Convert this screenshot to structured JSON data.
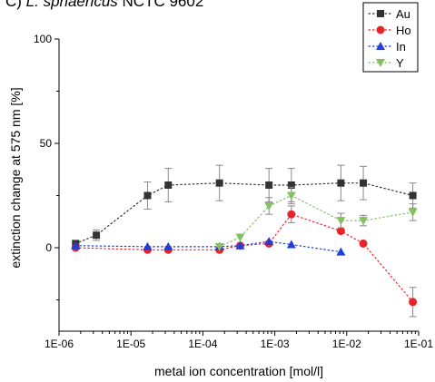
{
  "title": {
    "prefix": "C) ",
    "species": "L. sphaericus",
    "suffix": " NCTC 9602"
  },
  "chart_data": {
    "type": "scatter",
    "xlabel": "metal ion concentration [mol/l]",
    "ylabel": "extinction change at 575 nm [%]",
    "x_scale": "log",
    "xlim": [
      1e-06,
      0.1
    ],
    "ylim": [
      -40,
      100
    ],
    "x_ticks": [
      1e-06,
      1e-05,
      0.0001,
      0.001,
      0.01,
      0.1
    ],
    "x_tick_labels": [
      "1E-06",
      "1E-05",
      "1E-04",
      "1E-03",
      "1E-02",
      "1E-01"
    ],
    "y_ticks": [
      0,
      50,
      100
    ],
    "y_tick_labels": [
      "0",
      "50",
      "100"
    ],
    "grid": false,
    "legend_position": "top-right",
    "series": [
      {
        "name": "Au",
        "color": "#333333",
        "marker": "square",
        "x": [
          1.7e-06,
          3.3e-06,
          1.7e-05,
          3.3e-05,
          0.00017,
          0.00083,
          0.0017,
          0.0083,
          0.017,
          0.083
        ],
        "y": [
          2,
          6,
          25,
          30,
          31,
          30,
          30,
          31,
          31,
          25
        ],
        "err": [
          1.5,
          2.5,
          6.5,
          8,
          8.5,
          8,
          8,
          8.5,
          8,
          6
        ]
      },
      {
        "name": "Ho",
        "color": "#e8242b",
        "marker": "circle",
        "x": [
          1.7e-06,
          1.7e-05,
          3.3e-05,
          0.00017,
          0.00033,
          0.00083,
          0.0017,
          0.0083,
          0.017,
          0.083
        ],
        "y": [
          0,
          -1,
          -1,
          -1,
          1,
          2,
          16,
          8,
          2,
          -26
        ],
        "err": [
          0,
          0,
          0,
          0,
          0,
          0,
          4,
          0,
          0,
          7
        ]
      },
      {
        "name": "In",
        "color": "#1f3fd6",
        "marker": "triangle-up",
        "x": [
          1.7e-06,
          1.7e-05,
          3.3e-05,
          0.00017,
          0.00033,
          0.00083,
          0.0017,
          0.0083
        ],
        "y": [
          1,
          0.5,
          0.5,
          0.5,
          1,
          3,
          1.5,
          -2
        ],
        "err": [
          0,
          0,
          0,
          0,
          0,
          0,
          0,
          0
        ]
      },
      {
        "name": "Y",
        "color": "#86c064",
        "marker": "triangle-down",
        "x": [
          0.00017,
          0.00033,
          0.00083,
          0.0017,
          0.0083,
          0.017,
          0.083
        ],
        "y": [
          0.5,
          5,
          20,
          25,
          13,
          13,
          17
        ],
        "err": [
          0,
          0,
          4,
          4,
          3.5,
          2.5,
          4
        ]
      }
    ]
  }
}
